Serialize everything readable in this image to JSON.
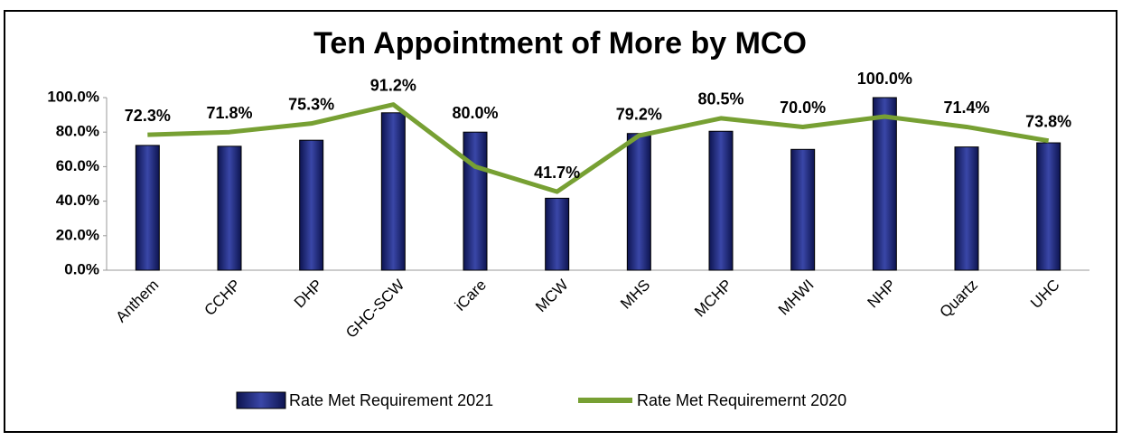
{
  "chart_data": {
    "type": "bar",
    "title": "Ten Appointment of More by MCO",
    "categories": [
      "Anthem",
      "CCHP",
      "DHP",
      "GHC-SCW",
      "iCare",
      "MCW",
      "MHS",
      "MCHP",
      "MHWI",
      "NHP",
      "Quartz",
      "UHC"
    ],
    "series": [
      {
        "name": "Rate Met Requirement 2021",
        "type": "bar",
        "color": "#1f2a7a",
        "values": [
          72.3,
          71.8,
          75.3,
          91.2,
          80.0,
          41.7,
          79.2,
          80.5,
          70.0,
          100.0,
          71.4,
          73.8
        ],
        "value_labels": [
          "72.3%",
          "71.8%",
          "75.3%",
          "91.2%",
          "80.0%",
          "41.7%",
          "79.2%",
          "80.5%",
          "70.0%",
          "100.0%",
          "71.4%",
          "73.8%"
        ]
      },
      {
        "name": "Rate Met Requiremernt 2020",
        "type": "line",
        "color": "#77a033",
        "values": [
          78.5,
          80,
          85,
          96,
          60,
          45.5,
          78,
          88,
          83,
          89,
          83,
          75
        ]
      }
    ],
    "ylim": [
      0,
      100
    ],
    "yticks": [
      {
        "value": 0,
        "label": "0.0%"
      },
      {
        "value": 20,
        "label": "20.0%"
      },
      {
        "value": 40,
        "label": "40.0%"
      },
      {
        "value": 60,
        "label": "60.0%"
      },
      {
        "value": 80,
        "label": "80.0%"
      },
      {
        "value": 100,
        "label": "100.0%"
      }
    ],
    "legend": "bottom"
  }
}
